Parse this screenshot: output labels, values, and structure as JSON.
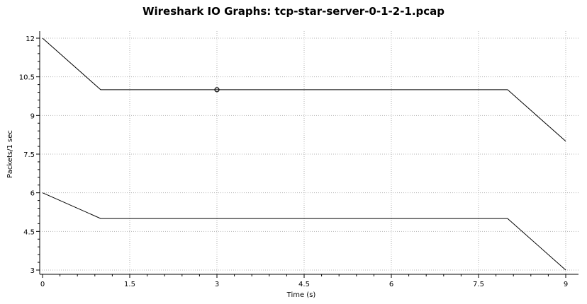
{
  "chart_data": {
    "type": "line",
    "title": "Wireshark IO Graphs: tcp-star-server-0-1-2-1.pcap",
    "xlabel": "Time (s)",
    "ylabel": "Packets/1 sec",
    "xlim": [
      0,
      9
    ],
    "ylim": [
      3,
      12
    ],
    "x_ticks": [
      0,
      1.5,
      3,
      4.5,
      6,
      7.5,
      9
    ],
    "x_tick_labels": [
      "0",
      "1.5",
      "3",
      "4.5",
      "6",
      "7.5",
      "9"
    ],
    "y_ticks": [
      3,
      4.5,
      6,
      7.5,
      9,
      10.5,
      12
    ],
    "y_tick_labels": [
      "3",
      "4.5",
      "6",
      "7.5",
      "9",
      "10.5",
      "12"
    ],
    "grid": true,
    "series": [
      {
        "x": [
          0,
          1,
          2,
          3,
          4,
          5,
          6,
          7,
          8,
          9
        ],
        "values": [
          12,
          10,
          10,
          10,
          10,
          10,
          10,
          10,
          10,
          8
        ],
        "color": "#000000"
      },
      {
        "x": [
          0,
          1,
          2,
          3,
          4,
          5,
          6,
          7,
          8,
          9
        ],
        "values": [
          6,
          5,
          5,
          5,
          5,
          5,
          5,
          5,
          5,
          3
        ],
        "color": "#000000"
      }
    ],
    "highlighted_point": {
      "series": 0,
      "x": 3,
      "y": 10
    }
  }
}
